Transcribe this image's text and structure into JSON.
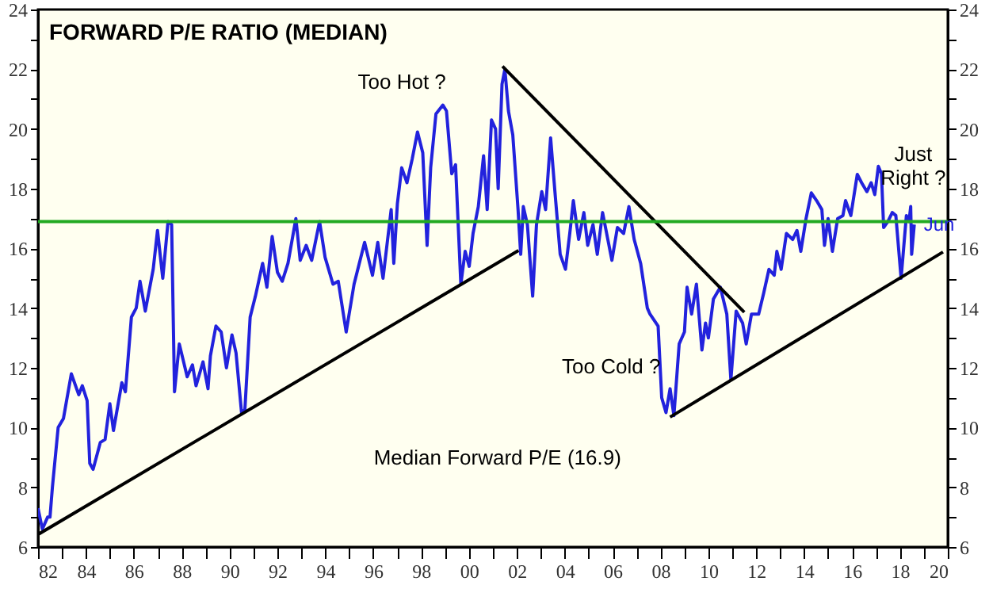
{
  "chart_data": {
    "type": "line",
    "title": "FORWARD P/E RATIO (MEDIAN)",
    "grid": false,
    "line_style": "solid",
    "xlim": [
      1982,
      2020
    ],
    "xticks": [
      {
        "value": 1982,
        "label": "82"
      },
      {
        "value": 1983,
        "label": null
      },
      {
        "value": 1984,
        "label": "84"
      },
      {
        "value": 1985,
        "label": null
      },
      {
        "value": 1986,
        "label": "86"
      },
      {
        "value": 1987,
        "label": null
      },
      {
        "value": 1988,
        "label": "88"
      },
      {
        "value": 1989,
        "label": null
      },
      {
        "value": 1990,
        "label": "90"
      },
      {
        "value": 1991,
        "label": null
      },
      {
        "value": 1992,
        "label": "92"
      },
      {
        "value": 1993,
        "label": null
      },
      {
        "value": 1994,
        "label": "94"
      },
      {
        "value": 1995,
        "label": null
      },
      {
        "value": 1996,
        "label": "96"
      },
      {
        "value": 1997,
        "label": null
      },
      {
        "value": 1998,
        "label": "98"
      },
      {
        "value": 1999,
        "label": null
      },
      {
        "value": 2000,
        "label": "00"
      },
      {
        "value": 2001,
        "label": null
      },
      {
        "value": 2002,
        "label": "02"
      },
      {
        "value": 2003,
        "label": null
      },
      {
        "value": 2004,
        "label": "04"
      },
      {
        "value": 2005,
        "label": null
      },
      {
        "value": 2006,
        "label": "06"
      },
      {
        "value": 2007,
        "label": null
      },
      {
        "value": 2008,
        "label": "08"
      },
      {
        "value": 2009,
        "label": null
      },
      {
        "value": 2010,
        "label": "10"
      },
      {
        "value": 2011,
        "label": null
      },
      {
        "value": 2012,
        "label": "12"
      },
      {
        "value": 2013,
        "label": null
      },
      {
        "value": 2014,
        "label": "14"
      },
      {
        "value": 2015,
        "label": null
      },
      {
        "value": 2016,
        "label": "16"
      },
      {
        "value": 2017,
        "label": null
      },
      {
        "value": 2018,
        "label": "18"
      },
      {
        "value": 2019,
        "label": null
      },
      {
        "value": 2020,
        "label": "20"
      }
    ],
    "ylim": [
      6,
      24
    ],
    "yticks": [
      6,
      {
        "value": 7,
        "label": null
      },
      8,
      {
        "value": 9,
        "label": null
      },
      10,
      {
        "value": 11,
        "label": null
      },
      12,
      {
        "value": 13,
        "label": null
      },
      14,
      {
        "value": 15,
        "label": null
      },
      16,
      {
        "value": 17,
        "label": null
      },
      18,
      {
        "value": 19,
        "label": null
      },
      20,
      {
        "value": 21,
        "label": null
      },
      22,
      {
        "value": 23,
        "label": null
      },
      24
    ],
    "y2lim": [
      6,
      24
    ],
    "y2ticks": [
      6,
      {
        "value": 7,
        "label": null
      },
      8,
      {
        "value": 9,
        "label": null
      },
      10,
      {
        "value": 11,
        "label": null
      },
      12,
      {
        "value": 13,
        "label": null
      },
      14,
      {
        "value": 15,
        "label": null
      },
      16,
      {
        "value": 17,
        "label": null
      },
      18,
      {
        "value": 19,
        "label": null
      },
      20,
      {
        "value": 21,
        "label": null
      },
      22,
      {
        "value": 23,
        "label": null
      },
      24
    ],
    "series": [
      {
        "color": "#2222dd",
        "x": [
          1982.0,
          1982.18,
          1982.4,
          1982.5,
          1982.6,
          1982.84,
          1983.06,
          1983.39,
          1983.7,
          1983.85,
          1984.05,
          1984.16,
          1984.3,
          1984.6,
          1984.8,
          1985.0,
          1985.15,
          1985.5,
          1985.65,
          1985.9,
          1986.1,
          1986.26,
          1986.48,
          1986.81,
          1986.99,
          1987.21,
          1987.43,
          1987.58,
          1987.7,
          1987.9,
          1988.23,
          1988.45,
          1988.6,
          1988.89,
          1989.1,
          1989.2,
          1989.43,
          1989.65,
          1989.87,
          1990.1,
          1990.27,
          1990.5,
          1990.64,
          1990.86,
          1991.08,
          1991.38,
          1991.56,
          1991.78,
          1992.0,
          1992.2,
          1992.44,
          1992.77,
          1992.95,
          1993.2,
          1993.43,
          1993.76,
          1993.99,
          1994.32,
          1994.54,
          1994.87,
          1995.2,
          1995.64,
          1995.97,
          1996.19,
          1996.41,
          1996.75,
          1996.86,
          1997.01,
          1997.19,
          1997.41,
          1997.63,
          1997.85,
          1998.07,
          1998.25,
          1998.4,
          1998.62,
          1998.91,
          1999.06,
          1999.28,
          1999.44,
          1999.66,
          1999.84,
          2000.01,
          2000.17,
          2000.39,
          2000.61,
          2000.76,
          2000.94,
          2001.11,
          2001.22,
          2001.38,
          2001.5,
          2001.65,
          2001.83,
          2002.05,
          2002.16,
          2002.27,
          2002.44,
          2002.66,
          2002.82,
          2003.04,
          2003.2,
          2003.41,
          2003.59,
          2003.81,
          2004.03,
          2004.21,
          2004.36,
          2004.58,
          2004.8,
          2004.96,
          2005.18,
          2005.36,
          2005.58,
          2005.8,
          2005.97,
          2006.2,
          2006.46,
          2006.68,
          2006.9,
          2007.17,
          2007.45,
          2007.56,
          2007.9,
          2008.05,
          2008.23,
          2008.4,
          2008.56,
          2008.78,
          2009.0,
          2009.11,
          2009.3,
          2009.5,
          2009.73,
          2009.88,
          2010.0,
          2010.21,
          2010.5,
          2010.77,
          2010.94,
          2011.16,
          2011.43,
          2011.58,
          2011.8,
          2012.1,
          2012.31,
          2012.53,
          2012.75,
          2012.86,
          2013.04,
          2013.26,
          2013.52,
          2013.7,
          2013.86,
          2014.08,
          2014.3,
          2014.52,
          2014.74,
          2014.85,
          2015.0,
          2015.18,
          2015.4,
          2015.62,
          2015.73,
          2015.95,
          2016.22,
          2016.4,
          2016.62,
          2016.8,
          2016.95,
          2017.1,
          2017.23,
          2017.32,
          2017.5,
          2017.68,
          2017.83,
          2018.05,
          2018.27,
          2018.38,
          2018.45,
          2018.49,
          2018.6
        ],
        "values": [
          7.3,
          6.6,
          7.0,
          7.0,
          8.0,
          10.0,
          10.3,
          11.8,
          11.1,
          11.4,
          10.9,
          8.8,
          8.6,
          9.5,
          9.6,
          10.8,
          9.9,
          11.5,
          11.2,
          13.7,
          14.0,
          14.9,
          13.9,
          15.3,
          16.6,
          15.0,
          16.9,
          16.8,
          11.2,
          12.8,
          11.7,
          12.1,
          11.4,
          12.2,
          11.3,
          12.4,
          13.4,
          13.2,
          12.0,
          13.1,
          12.5,
          10.5,
          10.6,
          13.7,
          14.4,
          15.5,
          14.7,
          16.4,
          15.2,
          14.9,
          15.5,
          17.0,
          15.6,
          16.1,
          15.6,
          16.9,
          15.7,
          14.8,
          14.9,
          13.2,
          14.8,
          16.2,
          15.1,
          16.2,
          15.0,
          17.3,
          15.5,
          17.5,
          18.7,
          18.2,
          19.0,
          19.9,
          19.2,
          16.1,
          18.7,
          20.5,
          20.8,
          20.6,
          18.5,
          18.8,
          14.8,
          15.9,
          15.4,
          16.5,
          17.4,
          19.1,
          17.3,
          20.3,
          20.0,
          18.0,
          21.5,
          22.0,
          20.6,
          19.8,
          17.3,
          15.8,
          17.4,
          16.8,
          14.4,
          16.8,
          17.9,
          17.3,
          19.7,
          17.9,
          15.8,
          15.3,
          16.5,
          17.6,
          16.3,
          17.2,
          16.1,
          16.8,
          15.8,
          17.2,
          16.3,
          15.6,
          16.7,
          16.5,
          17.4,
          16.3,
          15.5,
          14.0,
          13.8,
          13.4,
          11.0,
          10.5,
          11.3,
          10.4,
          12.8,
          13.2,
          14.7,
          13.8,
          14.8,
          12.6,
          13.5,
          13.0,
          14.3,
          14.7,
          13.8,
          11.6,
          13.9,
          13.5,
          12.8,
          13.8,
          13.8,
          14.5,
          15.3,
          15.1,
          15.9,
          15.3,
          16.5,
          16.3,
          16.6,
          15.9,
          17.0,
          17.86,
          17.6,
          17.3,
          16.1,
          17.0,
          15.9,
          17.0,
          17.1,
          17.6,
          17.1,
          18.48,
          18.2,
          17.9,
          18.2,
          17.8,
          18.75,
          18.5,
          16.7,
          16.9,
          17.2,
          17.1,
          15.0,
          17.1,
          16.9,
          17.4,
          15.8,
          16.8
        ]
      },
      {
        "type": "line",
        "color": "#000000",
        "x": [
          1982.0,
          2002.07
        ],
        "values": [
          6.42,
          15.93
        ]
      },
      {
        "type": "line",
        "color": "#000000",
        "x": [
          2001.4,
          2011.5
        ],
        "values": [
          22.1,
          13.86
        ]
      },
      {
        "type": "line",
        "color": "#000000",
        "x": [
          2008.4,
          2019.8
        ],
        "values": [
          10.35,
          15.88
        ]
      }
    ],
    "ref_lines": [
      {
        "axis": "y",
        "value": 16.9,
        "color": "#22aa22"
      }
    ],
    "annotations": [
      "Too Hot ?",
      "Too Cold ?",
      "Just Right ?",
      "Median Forward P/E (16.9)",
      {
        "text": "Jun",
        "x": 2018.6,
        "y": 16.8
      }
    ]
  }
}
